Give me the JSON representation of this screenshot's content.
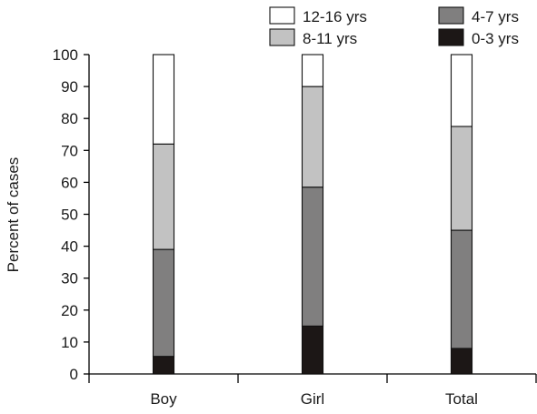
{
  "chart_data": {
    "type": "bar",
    "stacked": true,
    "title": "",
    "xlabel": "",
    "ylabel": "Percent of cases",
    "ylim": [
      0,
      100
    ],
    "yticks": [
      0,
      10,
      20,
      30,
      40,
      50,
      60,
      70,
      80,
      90,
      100
    ],
    "grid": false,
    "legend_position": "top-right",
    "categories": [
      "Boy",
      "Girl",
      "Total"
    ],
    "series": [
      {
        "name": "0-3 yrs",
        "color": "#1c1716",
        "values": [
          5.5,
          15.0,
          8.0
        ]
      },
      {
        "name": "4-7 yrs",
        "color": "#807f7f",
        "values": [
          33.5,
          43.5,
          37.0
        ]
      },
      {
        "name": "8-11 yrs",
        "color": "#c2c2c2",
        "values": [
          33.0,
          31.5,
          32.5
        ]
      },
      {
        "name": "12-16 yrs",
        "color": "#ffffff",
        "values": [
          28.0,
          10.0,
          22.5
        ]
      }
    ],
    "legend_order": [
      "12-16 yrs",
      "4-7 yrs",
      "8-11 yrs",
      "0-3 yrs"
    ]
  }
}
